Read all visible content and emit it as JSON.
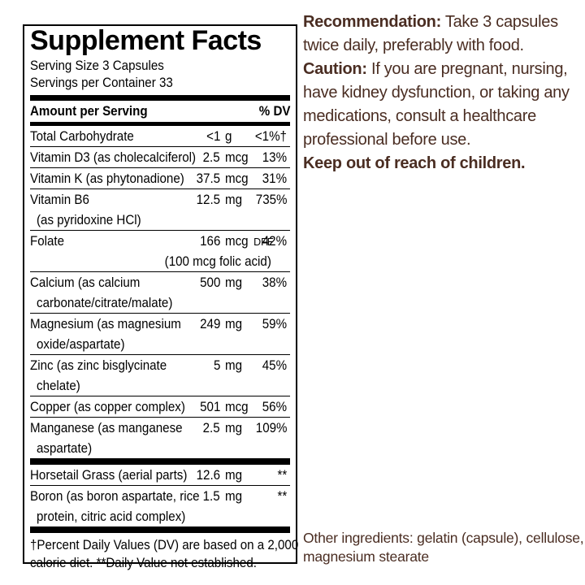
{
  "colors": {
    "panel_text": "#000000",
    "info_text": "#4a2d22"
  },
  "panel": {
    "title": "Supplement Facts",
    "serving_size": "Serving Size 3 Capsules",
    "servings_per_container": "Servings per Container 33",
    "header": {
      "amount_label": "Amount per Serving",
      "dv_label": "% DV"
    },
    "rows": [
      {
        "name": "Total Carbohydrate",
        "value": "<1",
        "unit": "g",
        "dv": "<1%†"
      },
      {
        "name": "Vitamin D3 (as cholecalciferol)",
        "value": "2.5",
        "unit": "mcg",
        "dv": "13%"
      },
      {
        "name": "Vitamin K (as phytonadione)",
        "value": "37.5",
        "unit": "mcg",
        "dv": "31%"
      },
      {
        "name": "Vitamin B6",
        "name2": "(as pyridoxine HCl)",
        "value": "12.5",
        "unit": "mg",
        "dv": "735%"
      },
      {
        "name": "Folate",
        "value": "166",
        "unit": "mcg",
        "unit_suffix": "DFE",
        "subline": "(100 mcg folic acid)",
        "dv": "42%"
      },
      {
        "name": "Calcium (as calcium",
        "name2": "carbonate/citrate/malate)",
        "value": "500",
        "unit": "mg",
        "dv": "38%"
      },
      {
        "name": "Magnesium (as magnesium",
        "name2": "oxide/aspartate)",
        "value": "249",
        "unit": "mg",
        "dv": "59%"
      },
      {
        "name": "Zinc (as zinc bisglycinate",
        "name2": "chelate)",
        "value": "5",
        "unit": "mg",
        "dv": "45%"
      },
      {
        "name": "Copper (as copper complex)",
        "value": "501",
        "unit": "mcg",
        "dv": "56%"
      },
      {
        "name": "Manganese (as manganese",
        "name2": "aspartate)",
        "value": "2.5",
        "unit": "mg",
        "dv": "109%"
      }
    ],
    "botanical_rows": [
      {
        "name": "Horsetail Grass (aerial parts)",
        "value": "12.6",
        "unit": "mg",
        "dv": "**"
      },
      {
        "name": "Boron (as boron aspartate, rice",
        "name2": "protein, citric acid complex)",
        "value": "1.5",
        "unit": "mg",
        "dv": "**"
      }
    ],
    "footnote_lines": [
      "†Percent Daily Values (DV) are based on a 2,000",
      "calorie diet. **Daily Value not established."
    ]
  },
  "right_column": {
    "recommendation_label": "Recommendation:",
    "recommendation_text": " Take 3 capsules twice daily, preferably with food.",
    "caution_label": "Caution:",
    "caution_text": " If you are pregnant, nursing, have kidney dysfunction, or taking any medications, consult a healthcare professional before use.",
    "keep_out": "Keep out of reach of children.",
    "other_ingredients": "Other ingredients: gelatin (capsule), cellulose, magnesium stearate"
  }
}
